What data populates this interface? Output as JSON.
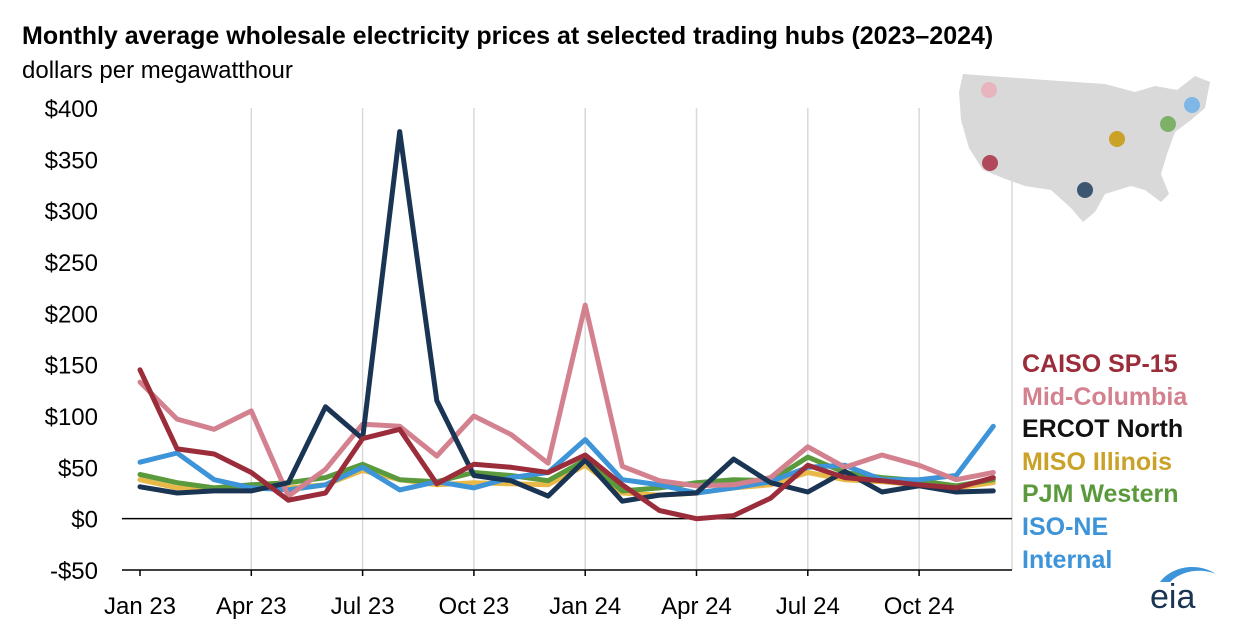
{
  "title": "Monthly average wholesale electricity prices at selected trading hubs (2023–2024)",
  "subtitle": "dollars per megawatthour",
  "logo_text": "eia",
  "chart_data": {
    "type": "line",
    "title": "Monthly average wholesale electricity prices at selected trading hubs (2023–2024)",
    "ylabel": "dollars per megawatthour",
    "ylim": [
      -50,
      400
    ],
    "yticks": [
      -50,
      0,
      50,
      100,
      150,
      200,
      250,
      300,
      350,
      400
    ],
    "ytick_labels": [
      "-$50",
      "$0",
      "$50",
      "$100",
      "$150",
      "$200",
      "$250",
      "$300",
      "$350",
      "$400"
    ],
    "x": [
      "2023-01",
      "2023-02",
      "2023-03",
      "2023-04",
      "2023-05",
      "2023-06",
      "2023-07",
      "2023-08",
      "2023-09",
      "2023-10",
      "2023-11",
      "2023-12",
      "2024-01",
      "2024-02",
      "2024-03",
      "2024-04",
      "2024-05",
      "2024-06",
      "2024-07",
      "2024-08",
      "2024-09",
      "2024-10",
      "2024-11",
      "2024-12"
    ],
    "xtick_labels": [
      {
        "x": "2023-01",
        "label": "Jan 23"
      },
      {
        "x": "2023-04",
        "label": "Apr 23"
      },
      {
        "x": "2023-07",
        "label": "Jul 23"
      },
      {
        "x": "2023-10",
        "label": "Oct 23"
      },
      {
        "x": "2024-01",
        "label": "Jan 24"
      },
      {
        "x": "2024-04",
        "label": "Apr 24"
      },
      {
        "x": "2024-07",
        "label": "Jul 24"
      },
      {
        "x": "2024-10",
        "label": "Oct 24"
      }
    ],
    "grid": "vertical",
    "legend_position": "right",
    "series": [
      {
        "name": "MISO Illinois",
        "color": "#e8b849",
        "values": [
          38,
          30,
          30,
          32,
          30,
          33,
          47,
          38,
          33,
          35,
          34,
          33,
          52,
          25,
          23,
          25,
          30,
          33,
          45,
          38,
          36,
          33,
          30,
          35
        ]
      },
      {
        "name": "PJM Western",
        "color": "#5a9a3c",
        "values": [
          43,
          35,
          30,
          33,
          35,
          40,
          53,
          38,
          36,
          45,
          42,
          37,
          57,
          27,
          30,
          35,
          38,
          37,
          60,
          45,
          40,
          37,
          32,
          38
        ]
      },
      {
        "name": "ISO-NE Internal",
        "color": "#3d94d8",
        "values": [
          55,
          64,
          38,
          30,
          28,
          33,
          50,
          28,
          36,
          30,
          40,
          45,
          77,
          38,
          33,
          25,
          30,
          36,
          50,
          52,
          38,
          38,
          42,
          90
        ]
      },
      {
        "name": "Mid-Columbia",
        "color": "#d4818f",
        "values": [
          133,
          97,
          87,
          105,
          22,
          48,
          92,
          90,
          61,
          100,
          82,
          54,
          208,
          51,
          37,
          32,
          33,
          40,
          70,
          50,
          62,
          52,
          38,
          45
        ]
      },
      {
        "name": "ERCOT North",
        "color": "#1a3553",
        "values": [
          31,
          25,
          27,
          27,
          35,
          109,
          78,
          377,
          115,
          42,
          37,
          22,
          57,
          17,
          23,
          25,
          58,
          35,
          26,
          46,
          26,
          32,
          26,
          27
        ]
      },
      {
        "name": "CAISO SP-15",
        "color": "#9b2c3a",
        "values": [
          145,
          68,
          63,
          45,
          18,
          25,
          78,
          87,
          34,
          53,
          50,
          45,
          62,
          33,
          8,
          0,
          3,
          20,
          52,
          40,
          37,
          33,
          30,
          40
        ]
      }
    ],
    "legend": [
      {
        "label": "CAISO SP-15",
        "color": "#9b2c3a"
      },
      {
        "label": "Mid-Columbia",
        "color": "#d4818f"
      },
      {
        "label": "ERCOT North",
        "color": "#111111"
      },
      {
        "label": "MISO Illinois",
        "color": "#c9a227"
      },
      {
        "label": "PJM Western",
        "color": "#5a9a3c"
      },
      {
        "label": "ISO-NE",
        "color": "#3d94d8"
      },
      {
        "label": "Internal",
        "color": "#3d94d8"
      }
    ]
  },
  "map": {
    "land_color": "#d9d9d9",
    "hubs": [
      {
        "name": "Mid-Columbia",
        "color": "#e8b4bd"
      },
      {
        "name": "CAISO SP-15",
        "color": "#b04a5a"
      },
      {
        "name": "ERCOT North",
        "color": "#3c5672"
      },
      {
        "name": "MISO Illinois",
        "color": "#c9a227"
      },
      {
        "name": "PJM Western",
        "color": "#7fb06a"
      },
      {
        "name": "ISO-NE Internal",
        "color": "#7fb8e6"
      }
    ]
  }
}
